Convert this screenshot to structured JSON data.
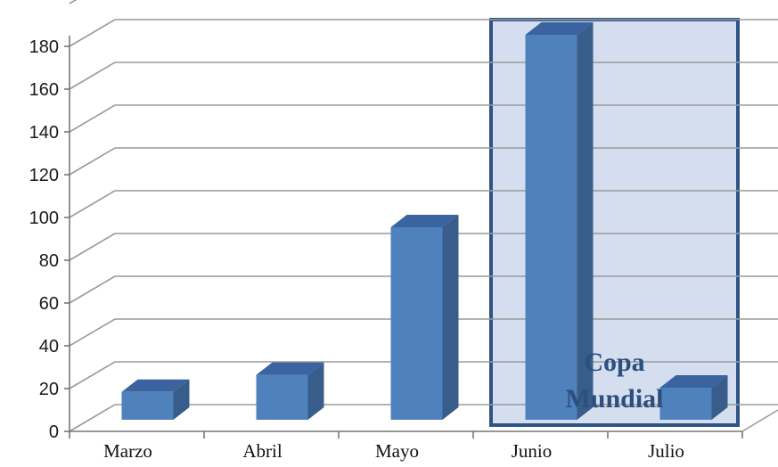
{
  "chart_data": {
    "type": "bar",
    "categories": [
      "Marzo",
      "Abril",
      "Mayo",
      "Junio",
      "Julio"
    ],
    "values": [
      13,
      21,
      90,
      180,
      15
    ],
    "ylim": [
      0,
      180
    ],
    "yticks": [
      0,
      20,
      40,
      60,
      80,
      100,
      120,
      140,
      160,
      180
    ],
    "grid": true,
    "legend": "none",
    "highlight": {
      "categories": [
        "Junio",
        "Julio"
      ],
      "label_line1": "Copa",
      "label_line2": "Mundial"
    }
  },
  "colors": {
    "bar_front": "#4F81BD",
    "bar_side": "#385D8A",
    "bar_top": "#3A63A0",
    "gridline": "#9a9a9a",
    "highlight_fill": "#D4DEEF",
    "highlight_border": "#2E5486",
    "annotation_text": "#2B4F80"
  }
}
